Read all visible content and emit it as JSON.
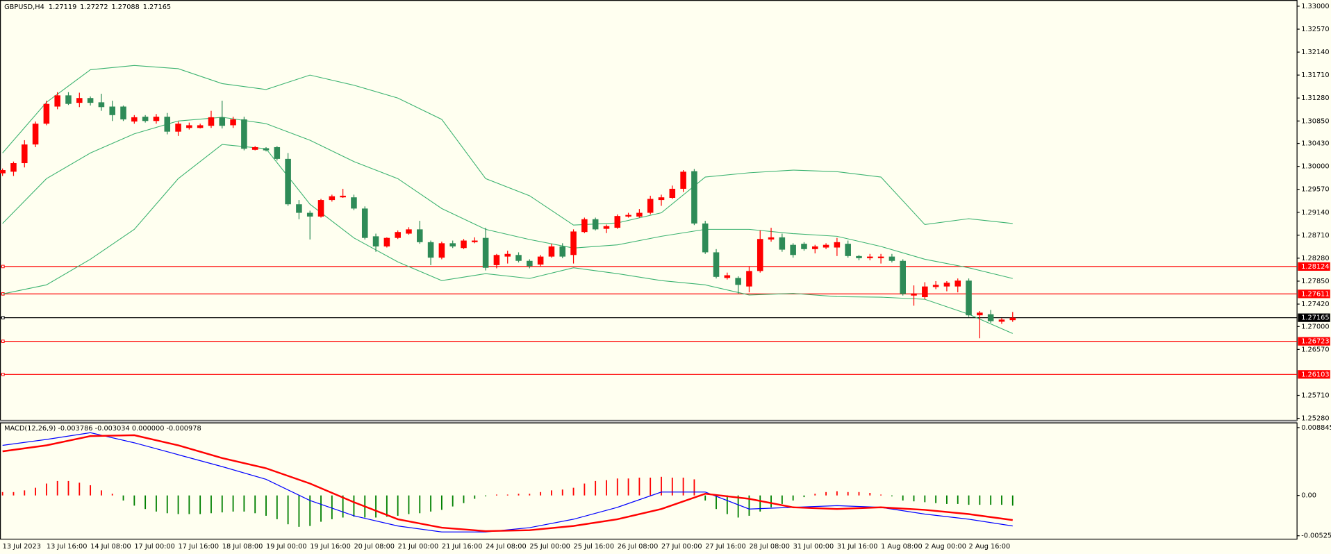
{
  "chart_data": {
    "type": "candlestick",
    "symbol": "GBPUSD,H4",
    "up_color": "#ff0000",
    "down_color": "#2e8b57",
    "categories": [
      "13 Jul 2023",
      null,
      null,
      null,
      "13 Jul 16:00",
      null,
      null,
      null,
      "14 Jul 08:00",
      null,
      null,
      null,
      "17 Jul 00:00",
      null,
      null,
      null,
      "17 Jul 16:00",
      null,
      null,
      null,
      "18 Jul 08:00",
      null,
      null,
      null,
      "19 Jul 00:00",
      null,
      null,
      null,
      "19 Jul 16:00",
      null,
      null,
      null,
      "20 Jul 08:00",
      null,
      null,
      null,
      "21 Jul 00:00",
      null,
      null,
      null,
      "21 Jul 16:00",
      null,
      null,
      null,
      "24 Jul 08:00",
      null,
      null,
      null,
      "25 Jul 00:00",
      null,
      null,
      null,
      "25 Jul 16:00",
      null,
      null,
      null,
      "26 Jul 08:00",
      null,
      null,
      null,
      "27 Jul 00:00",
      null,
      null,
      null,
      "27 Jul 16:00",
      null,
      null,
      null,
      "28 Jul 08:00",
      null,
      null,
      null,
      "31 Jul 00:00",
      null,
      null,
      null,
      "31 Jul 16:00",
      null,
      null,
      null,
      "1 Aug 08:00",
      null,
      null,
      null,
      "2 Aug 00:00",
      null,
      null,
      null,
      "2 Aug 16:00",
      null,
      null,
      null,
      null
    ],
    "ohlc": {
      "open": [
        1.2987,
        1.299,
        1.3006,
        1.3041,
        1.308,
        1.3112,
        1.3133,
        1.3119,
        1.3128,
        1.312,
        1.3112,
        1.3112,
        1.3084,
        1.3093,
        1.3085,
        1.3093,
        1.3065,
        1.3072,
        1.3072,
        1.3076,
        1.3092,
        1.3077,
        1.3088,
        1.3031,
        1.3034,
        1.3036,
        1.3014,
        1.2929,
        1.2913,
        1.2906,
        1.2937,
        1.2942,
        1.2942,
        1.2921,
        1.2869,
        1.285,
        1.2866,
        1.2874,
        1.2882,
        1.2858,
        1.2829,
        1.2856,
        1.2847,
        1.2858,
        1.2866,
        1.2815,
        1.2831,
        1.2834,
        1.2823,
        1.2816,
        1.2831,
        1.285,
        1.2834,
        1.2877,
        1.2901,
        1.2883,
        1.2885,
        1.2906,
        1.2906,
        1.2913,
        1.2937,
        1.2941,
        1.2958,
        1.2991,
        1.2893,
        1.2839,
        1.2791,
        1.2791,
        1.2775,
        1.2804,
        1.2863,
        1.2867,
        1.2853,
        1.2855,
        1.2845,
        1.2848,
        1.2848,
        1.2855,
        1.2832,
        1.2828,
        1.2828,
        1.2831,
        1.2823,
        1.2758,
        1.2755,
        1.2774,
        1.2775,
        1.2775,
        1.2786,
        1.2721,
        1.2723,
        1.2709,
        1.27119
      ],
      "high": [
        1.2996,
        1.3009,
        1.3049,
        1.3084,
        1.3123,
        1.3139,
        1.3139,
        1.3138,
        1.3131,
        1.3136,
        1.3123,
        1.3114,
        1.3096,
        1.3096,
        1.3098,
        1.31,
        1.3084,
        1.3082,
        1.308,
        1.3104,
        1.3123,
        1.3093,
        1.3093,
        1.3038,
        1.3036,
        1.3038,
        1.3025,
        1.2937,
        1.2917,
        1.2939,
        1.2947,
        1.2958,
        1.2947,
        1.2925,
        1.2874,
        1.2867,
        1.288,
        1.2886,
        1.2898,
        1.2861,
        1.2859,
        1.2861,
        1.2864,
        1.2867,
        1.2885,
        1.2836,
        1.2842,
        1.2839,
        1.2826,
        1.2834,
        1.2855,
        1.2856,
        1.2882,
        1.2904,
        1.2904,
        1.2891,
        1.291,
        1.2913,
        1.292,
        1.2945,
        1.2947,
        1.2964,
        1.2993,
        1.2995,
        1.2898,
        1.2845,
        1.2801,
        1.2794,
        1.2812,
        1.288,
        1.2885,
        1.2874,
        1.2856,
        1.2858,
        1.2853,
        1.2856,
        1.2866,
        1.2861,
        1.2834,
        1.2836,
        1.2836,
        1.2836,
        1.2826,
        1.2777,
        1.2783,
        1.2785,
        1.2785,
        1.279,
        1.279,
        1.2729,
        1.2731,
        1.2716,
        1.27272
      ],
      "low": [
        1.2982,
        1.2982,
        1.2998,
        1.3036,
        1.3077,
        1.3107,
        1.3115,
        1.3111,
        1.3114,
        1.3104,
        1.3085,
        1.3085,
        1.308,
        1.3082,
        1.308,
        1.306,
        1.3057,
        1.3069,
        1.3071,
        1.3072,
        1.3071,
        1.3072,
        1.303,
        1.303,
        1.3028,
        1.3011,
        1.2926,
        1.2901,
        1.2863,
        1.2904,
        1.2934,
        1.2941,
        1.2918,
        1.2863,
        1.284,
        1.2848,
        1.2864,
        1.2872,
        1.2855,
        1.2815,
        1.2826,
        1.2847,
        1.2845,
        1.2856,
        1.2805,
        1.2809,
        1.2818,
        1.282,
        1.2809,
        1.2813,
        1.2829,
        1.2828,
        1.2818,
        1.2875,
        1.288,
        1.2875,
        1.2883,
        1.2904,
        1.2904,
        1.291,
        1.2926,
        1.2939,
        1.2952,
        1.289,
        1.2836,
        1.279,
        1.2788,
        1.2761,
        1.2764,
        1.2801,
        1.2859,
        1.284,
        1.2829,
        1.2842,
        1.2837,
        1.2845,
        1.2832,
        1.2829,
        1.2824,
        1.2824,
        1.2818,
        1.282,
        1.2758,
        1.2739,
        1.2751,
        1.277,
        1.2766,
        1.2764,
        1.2718,
        1.2678,
        1.2707,
        1.2705,
        1.27088
      ],
      "close": [
        1.2993,
        1.3006,
        1.3041,
        1.308,
        1.3117,
        1.3133,
        1.3117,
        1.3128,
        1.3119,
        1.3111,
        1.3096,
        1.3088,
        1.3092,
        1.3085,
        1.3093,
        1.3065,
        1.308,
        1.3077,
        1.3077,
        1.3092,
        1.3076,
        1.3088,
        1.3033,
        1.3036,
        1.303,
        1.3014,
        1.2929,
        1.2913,
        1.2906,
        1.2937,
        1.2944,
        1.2945,
        1.2921,
        1.2866,
        1.285,
        1.2866,
        1.2877,
        1.2882,
        1.2858,
        1.2829,
        1.2856,
        1.285,
        1.2861,
        1.2861,
        1.281,
        1.2834,
        1.2836,
        1.2823,
        1.2813,
        1.2831,
        1.285,
        1.2831,
        1.2878,
        1.2901,
        1.2882,
        1.2888,
        1.2907,
        1.2909,
        1.2913,
        1.2939,
        1.2942,
        1.2958,
        1.299,
        1.2893,
        1.2839,
        1.2793,
        1.2796,
        1.2778,
        1.2804,
        1.2864,
        1.2867,
        1.2844,
        1.2834,
        1.2845,
        1.285,
        1.2853,
        1.2858,
        1.2832,
        1.2828,
        1.2831,
        1.2831,
        1.2823,
        1.2761,
        1.2762,
        1.2775,
        1.2778,
        1.2782,
        1.2786,
        1.2721,
        1.2726,
        1.271,
        1.2713,
        1.27165
      ]
    },
    "bands": {
      "color": "#3cb371",
      "x": [
        0,
        4,
        8,
        12,
        16,
        20,
        24,
        28,
        32,
        36,
        40,
        44,
        48,
        52,
        56,
        60,
        64,
        68,
        72,
        76,
        80,
        84,
        88,
        92
      ],
      "upper": [
        1.3025,
        1.312,
        1.3181,
        1.3189,
        1.3183,
        1.3155,
        1.3144,
        1.3171,
        1.3152,
        1.3128,
        1.3088,
        1.2977,
        1.2945,
        1.289,
        1.2894,
        1.2913,
        1.298,
        1.2988,
        1.2993,
        1.299,
        1.298,
        1.2891,
        1.2902,
        1.2893
      ],
      "middle": [
        1.2893,
        1.2977,
        1.3025,
        1.3061,
        1.3085,
        1.3092,
        1.308,
        1.3049,
        1.3009,
        1.2977,
        1.2921,
        1.2882,
        1.2863,
        1.2847,
        1.2853,
        1.2869,
        1.2882,
        1.2882,
        1.2874,
        1.2869,
        1.285,
        1.2826,
        1.281,
        1.279
      ],
      "lower": [
        1.2761,
        1.2778,
        1.2826,
        1.2882,
        1.2977,
        1.3041,
        1.3033,
        1.2929,
        1.2866,
        1.2821,
        1.2786,
        1.2799,
        1.279,
        1.281,
        1.2799,
        1.2786,
        1.2778,
        1.2759,
        1.2762,
        1.2756,
        1.2755,
        1.2751,
        1.2723,
        1.2687
      ]
    },
    "ylim": [
      1.2525,
      1.331
    ],
    "yticks": [
      {
        "value": 1.33,
        "label": "1.33000"
      },
      {
        "value": 1.3257,
        "label": "1.32570"
      },
      {
        "value": 1.3214,
        "label": "1.32140"
      },
      {
        "value": 1.3171,
        "label": "1.31710"
      },
      {
        "value": 1.3128,
        "label": "1.31280"
      },
      {
        "value": 1.3085,
        "label": "1.30850"
      },
      {
        "value": 1.3043,
        "label": "1.30430"
      },
      {
        "value": 1.3,
        "label": "1.30000"
      },
      {
        "value": 1.2957,
        "label": "1.29570"
      },
      {
        "value": 1.2914,
        "label": "1.29140"
      },
      {
        "value": 1.2871,
        "label": "1.28710"
      },
      {
        "value": 1.2828,
        "label": "1.28280"
      },
      {
        "value": 1.2785,
        "label": "1.27850"
      },
      {
        "value": 1.2742,
        "label": "1.27420"
      },
      {
        "value": 1.27,
        "label": "1.27000"
      },
      {
        "value": 1.2657,
        "label": "1.26570"
      },
      {
        "value": 1.2571,
        "label": "1.25710"
      },
      {
        "value": 1.2528,
        "label": "1.25280"
      }
    ],
    "levels": [
      {
        "value": 1.28124,
        "color": "#ff0000"
      },
      {
        "value": 1.27611,
        "color": "#ff0000"
      },
      {
        "value": 1.26723,
        "color": "#ff0000"
      },
      {
        "value": 1.26103,
        "color": "#ff0000"
      }
    ],
    "bid": {
      "value": 1.27165,
      "color": "#000000"
    },
    "macd": {
      "title": "MACD(12,26,9) -0.003786 -0.003034 0.000000 -0.000978",
      "ylim": [
        -0.00575,
        0.00951
      ],
      "yticks": [
        0.008845,
        {
          "value": 0,
          "label": "0.00"
        },
        -0.005254
      ],
      "up_color": "#ff0000",
      "down_color": "#008000",
      "histogram": [
        0.00044,
        0.00044,
        0.00066,
        0.001,
        0.00155,
        0.00188,
        0.00188,
        0.00166,
        0.00133,
        0.00066,
        0.00022,
        -0.00066,
        -0.00133,
        -0.00177,
        -0.0021,
        -0.00232,
        -0.00243,
        -0.00243,
        -0.00243,
        -0.00232,
        -0.00221,
        -0.0021,
        -0.0021,
        -0.00232,
        -0.00265,
        -0.0031,
        -0.00376,
        -0.00409,
        -0.00398,
        -0.00343,
        -0.0031,
        -0.00288,
        -0.00277,
        -0.00288,
        -0.00288,
        -0.00277,
        -0.00265,
        -0.00243,
        -0.00232,
        -0.0021,
        -0.00188,
        -0.00144,
        -0.001,
        -0.00044,
        -0.00011,
        0.00011,
        0.00011,
        0.00022,
        0.00022,
        0.00044,
        0.00066,
        0.00077,
        0.001,
        0.00155,
        0.00188,
        0.00199,
        0.00221,
        0.00221,
        0.00232,
        0.00232,
        0.00243,
        0.00232,
        0.00232,
        0.0021,
        -0.00066,
        -0.00177,
        -0.00243,
        -0.00288,
        -0.00265,
        -0.0021,
        -0.00155,
        -0.00111,
        -0.00066,
        -0.00022,
        0.00022,
        0.00044,
        0.00055,
        0.00044,
        0.00044,
        0.00033,
        0.00011,
        -0.00011,
        -0.00066,
        -0.00077,
        -0.00088,
        -0.001,
        -0.00111,
        -0.00111,
        -0.00122,
        -0.00122,
        -0.00122,
        -0.00122,
        -0.00133
      ],
      "x": [
        0,
        4,
        8,
        12,
        16,
        20,
        24,
        28,
        32,
        36,
        40,
        44,
        48,
        52,
        56,
        60,
        64,
        68,
        72,
        76,
        80,
        84,
        88,
        92
      ],
      "main": {
        "color": "#0000ff",
        "values": [
          0.00653,
          0.0073,
          0.00818,
          0.00686,
          0.00531,
          0.00376,
          0.0021,
          -0.00066,
          -0.00265,
          -0.00398,
          -0.00476,
          -0.00476,
          -0.0042,
          -0.0031,
          -0.00155,
          0.00044,
          0.00044,
          -0.00177,
          -0.00155,
          -0.00133,
          -0.00155,
          -0.00243,
          -0.0031,
          -0.00398
        ]
      },
      "signal": {
        "color": "#ff0000",
        "values": [
          0.00575,
          0.00653,
          0.00774,
          0.00785,
          0.00653,
          0.00487,
          0.00354,
          0.00155,
          -0.00088,
          -0.0031,
          -0.0042,
          -0.00465,
          -0.00453,
          -0.00398,
          -0.0031,
          -0.00177,
          0.00022,
          -0.00044,
          -0.00155,
          -0.00177,
          -0.00155,
          -0.00188,
          -0.00243,
          -0.00321
        ]
      }
    }
  }
}
